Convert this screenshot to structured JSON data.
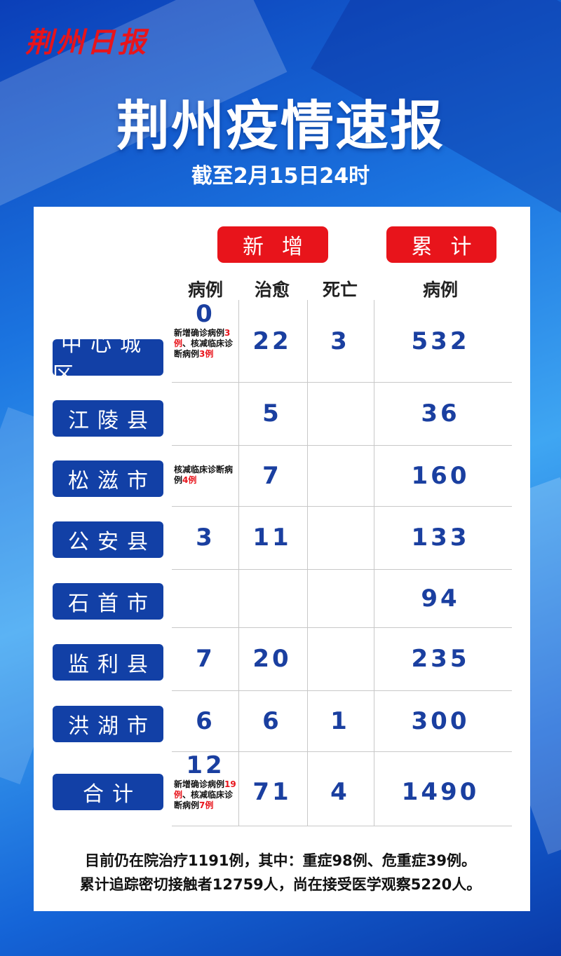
{
  "header": {
    "masthead": "荆州日报",
    "title": "荆州疫情速报",
    "subtitle": "截至2月15日24时"
  },
  "table": {
    "groups": [
      "新增",
      "累计"
    ],
    "columns": [
      "病例",
      "治愈",
      "死亡",
      "病例"
    ],
    "rows": [
      {
        "region": "中心城区",
        "new_cases": "0",
        "note": [
          "新增确诊病例",
          "3例",
          "、核减临床诊断病例",
          "3例"
        ],
        "cured": "22",
        "deaths": "3",
        "total": "532"
      },
      {
        "region": "江陵县",
        "cured": "5",
        "total": "36"
      },
      {
        "region": "松滋市",
        "note": [
          "核减临床诊断病例",
          "4例"
        ],
        "cured": "7",
        "total": "160"
      },
      {
        "region": "公安县",
        "new_cases": "3",
        "cured": "11",
        "total": "133"
      },
      {
        "region": "石首市",
        "total": "94"
      },
      {
        "region": "监利县",
        "new_cases": "7",
        "cured": "20",
        "total": "235"
      },
      {
        "region": "洪湖市",
        "new_cases": "6",
        "cured": "6",
        "deaths": "1",
        "total": "300"
      },
      {
        "region": "合计",
        "new_cases": "12",
        "note": [
          "新增确诊病例",
          "19例",
          "、核减临床诊断病例",
          "7例"
        ],
        "cured": "71",
        "deaths": "4",
        "total": "1490"
      }
    ]
  },
  "footer": [
    "目前仍在院治疗1191例，其中：重症98例、危重症39例。",
    "累计追踪密切接触者12759人，尚在接受医学观察5220人。"
  ]
}
